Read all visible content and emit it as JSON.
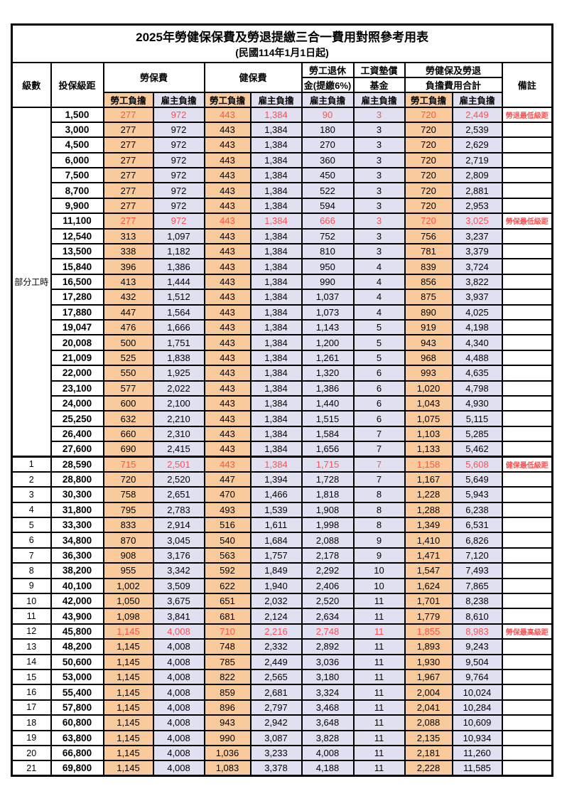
{
  "title": "2025年勞健保保費及勞退提繳三合一費用對照參考用表",
  "subtitle": "(民國114年1月1日起)",
  "part_time_label": "部分工時",
  "colors": {
    "employee_bg": "#F9CB9C",
    "employer_bg": "#E1E0F1",
    "highlight_red": "#FF5050",
    "border": "#000000"
  },
  "header": {
    "level": "級數",
    "bracket": "投保級距",
    "labor_ins": "勞保費",
    "health_ins": "健保費",
    "pension_line1": "勞工退休",
    "pension_line2": "金(提繳6%)",
    "wage_fund_line1": "工資墊償",
    "wage_fund_line2": "基金",
    "total_line1": "勞健保及勞退",
    "total_line2": "負擔費用合計",
    "remark": "備註",
    "employee": "勞工負擔",
    "employer": "雇主負擔"
  },
  "rows": [
    {
      "level": "",
      "bracket": "1,500",
      "v": [
        "277",
        "972",
        "443",
        "1,384",
        "90",
        "3",
        "720",
        "2,449"
      ],
      "red": true,
      "remark": "勞退最低級距"
    },
    {
      "level": "",
      "bracket": "3,000",
      "v": [
        "277",
        "972",
        "443",
        "1,384",
        "180",
        "3",
        "720",
        "2,539"
      ]
    },
    {
      "level": "",
      "bracket": "4,500",
      "v": [
        "277",
        "972",
        "443",
        "1,384",
        "270",
        "3",
        "720",
        "2,629"
      ]
    },
    {
      "level": "",
      "bracket": "6,000",
      "v": [
        "277",
        "972",
        "443",
        "1,384",
        "360",
        "3",
        "720",
        "2,719"
      ]
    },
    {
      "level": "",
      "bracket": "7,500",
      "v": [
        "277",
        "972",
        "443",
        "1,384",
        "450",
        "3",
        "720",
        "2,809"
      ]
    },
    {
      "level": "",
      "bracket": "8,700",
      "v": [
        "277",
        "972",
        "443",
        "1,384",
        "522",
        "3",
        "720",
        "2,881"
      ]
    },
    {
      "level": "",
      "bracket": "9,900",
      "v": [
        "277",
        "972",
        "443",
        "1,384",
        "594",
        "3",
        "720",
        "2,953"
      ]
    },
    {
      "level": "",
      "bracket": "11,100",
      "v": [
        "277",
        "972",
        "443",
        "1,384",
        "666",
        "3",
        "720",
        "3,025"
      ],
      "red": true,
      "remark": "勞保最低級距"
    },
    {
      "level": "",
      "bracket": "12,540",
      "v": [
        "313",
        "1,097",
        "443",
        "1,384",
        "752",
        "3",
        "756",
        "3,237"
      ]
    },
    {
      "level": "",
      "bracket": "13,500",
      "v": [
        "338",
        "1,182",
        "443",
        "1,384",
        "810",
        "3",
        "781",
        "3,379"
      ]
    },
    {
      "level": "",
      "bracket": "15,840",
      "v": [
        "396",
        "1,386",
        "443",
        "1,384",
        "950",
        "4",
        "839",
        "3,724"
      ]
    },
    {
      "level": "",
      "bracket": "16,500",
      "v": [
        "413",
        "1,444",
        "443",
        "1,384",
        "990",
        "4",
        "856",
        "3,822"
      ]
    },
    {
      "level": "",
      "bracket": "17,280",
      "v": [
        "432",
        "1,512",
        "443",
        "1,384",
        "1,037",
        "4",
        "875",
        "3,937"
      ]
    },
    {
      "level": "",
      "bracket": "17,880",
      "v": [
        "447",
        "1,564",
        "443",
        "1,384",
        "1,073",
        "4",
        "890",
        "4,025"
      ]
    },
    {
      "level": "",
      "bracket": "19,047",
      "v": [
        "476",
        "1,666",
        "443",
        "1,384",
        "1,143",
        "5",
        "919",
        "4,198"
      ]
    },
    {
      "level": "",
      "bracket": "20,008",
      "v": [
        "500",
        "1,751",
        "443",
        "1,384",
        "1,200",
        "5",
        "943",
        "4,340"
      ]
    },
    {
      "level": "",
      "bracket": "21,009",
      "v": [
        "525",
        "1,838",
        "443",
        "1,384",
        "1,261",
        "5",
        "968",
        "4,488"
      ]
    },
    {
      "level": "",
      "bracket": "22,000",
      "v": [
        "550",
        "1,925",
        "443",
        "1,384",
        "1,320",
        "6",
        "993",
        "4,635"
      ]
    },
    {
      "level": "",
      "bracket": "23,100",
      "v": [
        "577",
        "2,022",
        "443",
        "1,384",
        "1,386",
        "6",
        "1,020",
        "4,798"
      ]
    },
    {
      "level": "",
      "bracket": "24,000",
      "v": [
        "600",
        "2,100",
        "443",
        "1,384",
        "1,440",
        "6",
        "1,043",
        "4,930"
      ]
    },
    {
      "level": "",
      "bracket": "25,250",
      "v": [
        "632",
        "2,210",
        "443",
        "1,384",
        "1,515",
        "6",
        "1,075",
        "5,115"
      ]
    },
    {
      "level": "",
      "bracket": "26,400",
      "v": [
        "660",
        "2,310",
        "443",
        "1,384",
        "1,584",
        "7",
        "1,103",
        "5,285"
      ]
    },
    {
      "level": "",
      "bracket": "27,600",
      "v": [
        "690",
        "2,415",
        "443",
        "1,384",
        "1,656",
        "7",
        "1,133",
        "5,462"
      ]
    },
    {
      "level": "1",
      "bracket": "28,590",
      "v": [
        "715",
        "2,501",
        "443",
        "1,384",
        "1,715",
        "7",
        "1,158",
        "5,608"
      ],
      "red": true,
      "remark": "健保最低級距",
      "section_start": true
    },
    {
      "level": "2",
      "bracket": "28,800",
      "v": [
        "720",
        "2,520",
        "447",
        "1,394",
        "1,728",
        "7",
        "1,167",
        "5,649"
      ]
    },
    {
      "level": "3",
      "bracket": "30,300",
      "v": [
        "758",
        "2,651",
        "470",
        "1,466",
        "1,818",
        "8",
        "1,228",
        "5,943"
      ]
    },
    {
      "level": "4",
      "bracket": "31,800",
      "v": [
        "795",
        "2,783",
        "493",
        "1,539",
        "1,908",
        "8",
        "1,288",
        "6,238"
      ]
    },
    {
      "level": "5",
      "bracket": "33,300",
      "v": [
        "833",
        "2,914",
        "516",
        "1,611",
        "1,998",
        "8",
        "1,349",
        "6,531"
      ]
    },
    {
      "level": "6",
      "bracket": "34,800",
      "v": [
        "870",
        "3,045",
        "540",
        "1,684",
        "2,088",
        "9",
        "1,410",
        "6,826"
      ]
    },
    {
      "level": "7",
      "bracket": "36,300",
      "v": [
        "908",
        "3,176",
        "563",
        "1,757",
        "2,178",
        "9",
        "1,471",
        "7,120"
      ]
    },
    {
      "level": "8",
      "bracket": "38,200",
      "v": [
        "955",
        "3,342",
        "592",
        "1,849",
        "2,292",
        "10",
        "1,547",
        "7,493"
      ]
    },
    {
      "level": "9",
      "bracket": "40,100",
      "v": [
        "1,002",
        "3,509",
        "622",
        "1,940",
        "2,406",
        "10",
        "1,624",
        "7,865"
      ]
    },
    {
      "level": "10",
      "bracket": "42,000",
      "v": [
        "1,050",
        "3,675",
        "651",
        "2,032",
        "2,520",
        "11",
        "1,701",
        "8,238"
      ]
    },
    {
      "level": "11",
      "bracket": "43,900",
      "v": [
        "1,098",
        "3,841",
        "681",
        "2,124",
        "2,634",
        "11",
        "1,779",
        "8,610"
      ]
    },
    {
      "level": "12",
      "bracket": "45,800",
      "v": [
        "1,145",
        "4,008",
        "710",
        "2,216",
        "2,748",
        "11",
        "1,855",
        "8,983"
      ],
      "red": true,
      "remark": "勞保最高級距"
    },
    {
      "level": "13",
      "bracket": "48,200",
      "v": [
        "1,145",
        "4,008",
        "748",
        "2,332",
        "2,892",
        "11",
        "1,893",
        "9,243"
      ]
    },
    {
      "level": "14",
      "bracket": "50,600",
      "v": [
        "1,145",
        "4,008",
        "785",
        "2,449",
        "3,036",
        "11",
        "1,930",
        "9,504"
      ]
    },
    {
      "level": "15",
      "bracket": "53,000",
      "v": [
        "1,145",
        "4,008",
        "822",
        "2,565",
        "3,180",
        "11",
        "1,967",
        "9,764"
      ]
    },
    {
      "level": "16",
      "bracket": "55,400",
      "v": [
        "1,145",
        "4,008",
        "859",
        "2,681",
        "3,324",
        "11",
        "2,004",
        "10,024"
      ]
    },
    {
      "level": "17",
      "bracket": "57,800",
      "v": [
        "1,145",
        "4,008",
        "896",
        "2,797",
        "3,468",
        "11",
        "2,041",
        "10,284"
      ]
    },
    {
      "level": "18",
      "bracket": "60,800",
      "v": [
        "1,145",
        "4,008",
        "943",
        "2,942",
        "3,648",
        "11",
        "2,088",
        "10,609"
      ]
    },
    {
      "level": "19",
      "bracket": "63,800",
      "v": [
        "1,145",
        "4,008",
        "990",
        "3,087",
        "3,828",
        "11",
        "2,135",
        "10,934"
      ]
    },
    {
      "level": "20",
      "bracket": "66,800",
      "v": [
        "1,145",
        "4,008",
        "1,036",
        "3,233",
        "4,008",
        "11",
        "2,181",
        "11,260"
      ]
    },
    {
      "level": "21",
      "bracket": "69,800",
      "v": [
        "1,145",
        "4,008",
        "1,083",
        "3,378",
        "4,188",
        "11",
        "2,228",
        "11,585"
      ]
    }
  ]
}
